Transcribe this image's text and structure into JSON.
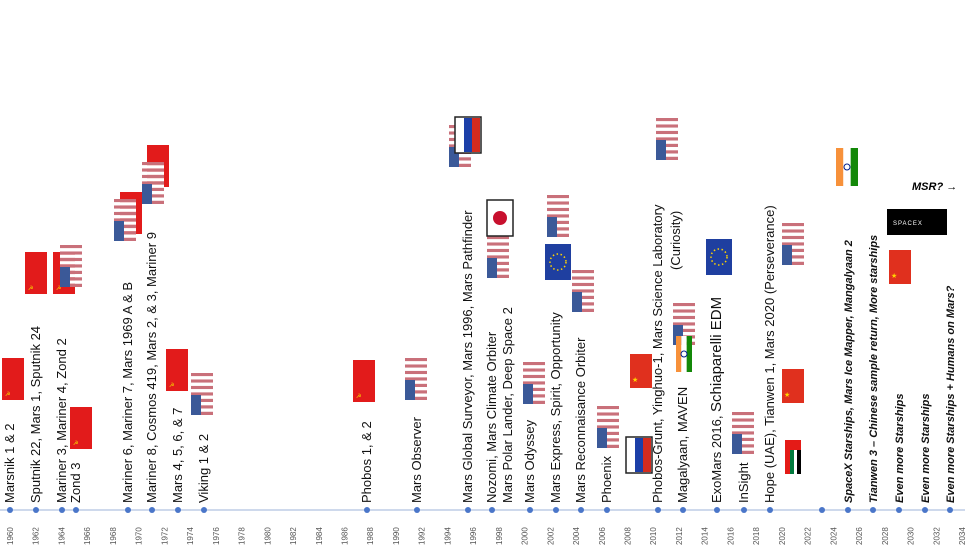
{
  "timeline": {
    "years": [
      "1960",
      "1962",
      "1964",
      "1966",
      "1968",
      "1970",
      "1972",
      "1974",
      "1976",
      "1978",
      "1980",
      "1982",
      "1984",
      "1986",
      "1988",
      "1990",
      "1992",
      "1994",
      "1996",
      "1998",
      "2000",
      "2002",
      "2004",
      "2006",
      "2008",
      "2010",
      "2012",
      "2014",
      "2016",
      "2018",
      "2020",
      "2022",
      "2024",
      "2026",
      "2028",
      "2030",
      "2032",
      "2034"
    ],
    "missions": [
      "Marsnik 1 & 2",
      "Sputnik 22, Mars 1, Sputnik 24",
      "Mariner 3, Mariner 4, Zond 2",
      "Zond 3",
      "Mariner 6, Mariner 7, Mars 1969 A & B",
      "Mariner 8, Cosmos 419, Mars 2, & 3, Mariner 9",
      "Mars 4, 5, 6, & 7",
      "Viking 1 & 2",
      "Phobos 1, & 2",
      "Mars Observer",
      "Mars Global Surveyor, Mars 1996, Mars Pathfinder",
      "Nozomi, Mars Climate Orbiter",
      "Mars Polar Lander, Deep Space 2",
      "Mars Odyssey",
      "Mars Express, Spirit, Opportunity",
      "Mars Reconnaisance Orbiter",
      "Phoenix",
      "Phobos-Grunt, Yinghuo-1, Mars Science Laboratory",
      "Magalyaan, MAVEN",
      "InSight",
      "Hope (UAE), Tianwen 1, Mars 2020 (Perseverance)",
      "SpaceX Starships, Mars Ice Mapper, Mangalyaan 2",
      "Tianwen 3 – Chinese sample return, More starships",
      "Even more Starships",
      "Even more Starships",
      "Even more Starships + Humans on Mars?"
    ],
    "curiosity": "(Curiosity)",
    "exomars": "ExoMars 2016, ",
    "schiaparelli": "Schiaparelli EDM",
    "msr": "MSR? →"
  }
}
